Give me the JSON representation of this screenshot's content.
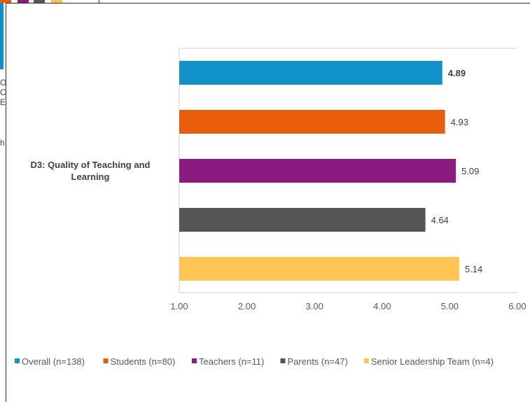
{
  "background_fragments": {
    "text_lines": [
      "O",
      "C",
      "E",
      "h"
    ],
    "chip_colors": [
      "#e85d0c",
      "#8b1c7f",
      "#555555",
      "#fdc454"
    ]
  },
  "chart_data": {
    "type": "bar",
    "orientation": "horizontal",
    "category": "D3: Quality of Teaching and Learning",
    "category_lines": [
      "D3: Quality of Teaching and",
      "Learning"
    ],
    "series": [
      {
        "name": "Overall (n=138)",
        "value": 4.89,
        "label": "4.89",
        "color": "#1192c9",
        "bold": true
      },
      {
        "name": "Students (n=80)",
        "value": 4.93,
        "label": "4.93",
        "color": "#e85d0c",
        "bold": false
      },
      {
        "name": "Teachers (n=11)",
        "value": 5.09,
        "label": "5.09",
        "color": "#8b1c7f",
        "bold": false
      },
      {
        "name": "Parents (n=47)",
        "value": 4.64,
        "label": "4.64",
        "color": "#555555",
        "bold": false
      },
      {
        "name": "Senior Leadership Team (n=4)",
        "value": 5.14,
        "label": "5.14",
        "color": "#fdc454",
        "bold": false
      }
    ],
    "xlim": [
      1,
      6
    ],
    "xticks": [
      "1.00",
      "2.00",
      "3.00",
      "4.00",
      "5.00",
      "6.00"
    ],
    "legend_position": "bottom",
    "grid": false
  }
}
